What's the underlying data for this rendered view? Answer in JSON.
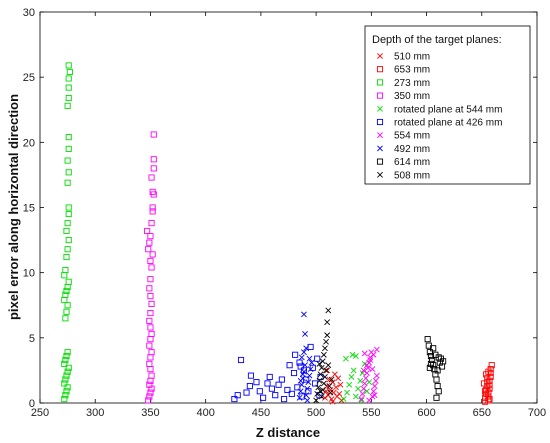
{
  "chart_data": {
    "type": "scatter",
    "title": "",
    "xlabel": "Z distance",
    "ylabel": "pixel error along horizontal direction",
    "xlim": [
      250,
      700
    ],
    "ylim": [
      0,
      30
    ],
    "xticks": [
      250,
      300,
      350,
      400,
      450,
      500,
      550,
      600,
      650,
      700
    ],
    "yticks": [
      0,
      5,
      10,
      15,
      20,
      25,
      30
    ],
    "grid": false,
    "legend": {
      "title": "Depth of the target planes:",
      "placement": "top-right"
    },
    "series": [
      {
        "name": "510 mm",
        "marker": "x",
        "color": "#ff0000",
        "points": [
          [
            508,
            0.4
          ],
          [
            509,
            0.9
          ],
          [
            510,
            1.3
          ],
          [
            511,
            0.6
          ],
          [
            512,
            1.8
          ],
          [
            513,
            1.0
          ],
          [
            514,
            0.3
          ],
          [
            515,
            1.6
          ],
          [
            516,
            0.8
          ],
          [
            517,
            2.2
          ],
          [
            518,
            1.2
          ],
          [
            519,
            0.5
          ],
          [
            520,
            1.9
          ],
          [
            521,
            0.7
          ],
          [
            522,
            1.4
          ],
          [
            523,
            0.2
          ],
          [
            510,
            2.5
          ],
          [
            515,
            0.1
          ]
        ]
      },
      {
        "name": "653 mm",
        "marker": "square",
        "color": "#ff0000",
        "points": [
          [
            653,
            0.1
          ],
          [
            653,
            0.4
          ],
          [
            654,
            0.7
          ],
          [
            654,
            1.0
          ],
          [
            655,
            1.3
          ],
          [
            655,
            1.6
          ],
          [
            655,
            1.9
          ],
          [
            656,
            0.2
          ],
          [
            656,
            0.5
          ],
          [
            656,
            0.8
          ],
          [
            657,
            1.1
          ],
          [
            657,
            1.4
          ],
          [
            657,
            1.7
          ],
          [
            658,
            2.0
          ],
          [
            658,
            2.3
          ],
          [
            658,
            2.6
          ],
          [
            659,
            2.9
          ],
          [
            654,
            2.2
          ],
          [
            656,
            2.4
          ],
          [
            652,
            1.5
          ],
          [
            653,
            0.9
          ],
          [
            657,
            0.3
          ]
        ]
      },
      {
        "name": "273 mm",
        "marker": "square",
        "color": "#00dd00",
        "points": [
          [
            272,
            0.3
          ],
          [
            273,
            0.6
          ],
          [
            274,
            0.9
          ],
          [
            275,
            1.2
          ],
          [
            272,
            1.5
          ],
          [
            273,
            1.8
          ],
          [
            274,
            2.1
          ],
          [
            275,
            2.4
          ],
          [
            276,
            2.7
          ],
          [
            272,
            3.0
          ],
          [
            273,
            3.3
          ],
          [
            274,
            3.6
          ],
          [
            275,
            3.9
          ],
          [
            273,
            6.5
          ],
          [
            274,
            7.0
          ],
          [
            275,
            7.5
          ],
          [
            272,
            7.9
          ],
          [
            273,
            8.3
          ],
          [
            274,
            8.6
          ],
          [
            275,
            8.9
          ],
          [
            276,
            9.3
          ],
          [
            272,
            9.8
          ],
          [
            273,
            10.2
          ],
          [
            274,
            11.2
          ],
          [
            275,
            11.8
          ],
          [
            276,
            12.5
          ],
          [
            274,
            13.2
          ],
          [
            275,
            13.8
          ],
          [
            276,
            14.5
          ],
          [
            276,
            15.0
          ],
          [
            275,
            16.9
          ],
          [
            276,
            17.7
          ],
          [
            275,
            18.6
          ],
          [
            276,
            19.5
          ],
          [
            276,
            20.4
          ],
          [
            275,
            22.8
          ],
          [
            276,
            23.4
          ],
          [
            276,
            24.2
          ],
          [
            276,
            24.9
          ],
          [
            277,
            25.4
          ],
          [
            276,
            25.9
          ]
        ]
      },
      {
        "name": "350 mm",
        "marker": "square",
        "color": "#ff00ff",
        "points": [
          [
            348,
            0.2
          ],
          [
            349,
            0.5
          ],
          [
            350,
            0.8
          ],
          [
            351,
            1.1
          ],
          [
            349,
            1.4
          ],
          [
            350,
            1.7
          ],
          [
            351,
            2.1
          ],
          [
            350,
            2.6
          ],
          [
            349,
            3.0
          ],
          [
            350,
            3.5
          ],
          [
            351,
            3.9
          ],
          [
            349,
            4.4
          ],
          [
            350,
            4.9
          ],
          [
            351,
            5.3
          ],
          [
            350,
            5.8
          ],
          [
            349,
            6.3
          ],
          [
            350,
            6.9
          ],
          [
            351,
            7.6
          ],
          [
            350,
            8.2
          ],
          [
            349,
            8.8
          ],
          [
            350,
            9.5
          ],
          [
            351,
            10.4
          ],
          [
            350,
            10.9
          ],
          [
            352,
            11.4
          ],
          [
            348,
            11.8
          ],
          [
            349,
            12.3
          ],
          [
            350,
            12.8
          ],
          [
            347,
            13.2
          ],
          [
            351,
            13.8
          ],
          [
            352,
            14.7
          ],
          [
            352,
            15.0
          ],
          [
            353,
            16.0
          ],
          [
            352,
            16.2
          ],
          [
            351,
            17.3
          ],
          [
            353,
            18.0
          ],
          [
            353,
            18.7
          ],
          [
            353,
            20.6
          ]
        ]
      },
      {
        "name": "rotated plane at 544 mm",
        "marker": "x",
        "color": "#00dd00",
        "points": [
          [
            525,
            0.3
          ],
          [
            528,
            0.8
          ],
          [
            530,
            1.4
          ],
          [
            532,
            2.0
          ],
          [
            534,
            2.5
          ],
          [
            536,
            0.5
          ],
          [
            538,
            1.1
          ],
          [
            540,
            1.7
          ],
          [
            542,
            2.3
          ],
          [
            544,
            3.0
          ],
          [
            546,
            0.9
          ],
          [
            548,
            1.6
          ],
          [
            527,
            3.4
          ],
          [
            533,
            3.7
          ],
          [
            541,
            0.2
          ],
          [
            536,
            3.6
          ]
        ]
      },
      {
        "name": "rotated plane at 426 mm",
        "marker": "square",
        "color": "#0000ff",
        "points": [
          [
            426,
            0.3
          ],
          [
            429,
            0.6
          ],
          [
            432,
            3.3
          ],
          [
            437,
            0.8
          ],
          [
            440,
            1.3
          ],
          [
            441,
            2.1
          ],
          [
            446,
            1.6
          ],
          [
            449,
            0.9
          ],
          [
            452,
            0.4
          ],
          [
            456,
            1.5
          ],
          [
            458,
            2.0
          ],
          [
            460,
            1.1
          ],
          [
            463,
            0.6
          ],
          [
            466,
            1.4
          ],
          [
            469,
            1.8
          ],
          [
            471,
            0.3
          ],
          [
            474,
            1.0
          ],
          [
            476,
            2.9
          ],
          [
            478,
            0.7
          ],
          [
            480,
            2.3
          ],
          [
            481,
            3.7
          ],
          [
            483,
            1.2
          ],
          [
            485,
            3.1
          ],
          [
            487,
            0.5
          ],
          [
            489,
            2.5
          ],
          [
            491,
            1.8
          ],
          [
            493,
            0.9
          ],
          [
            495,
            4.3
          ],
          [
            497,
            2.7
          ],
          [
            499,
            1.5
          ],
          [
            501,
            3.4
          ],
          [
            503,
            0.6
          ],
          [
            504,
            2.0
          ],
          [
            486,
            2.8
          ]
        ]
      },
      {
        "name": "554 mm",
        "marker": "x",
        "color": "#ff00ff",
        "points": [
          [
            541,
            0.3
          ],
          [
            542,
            0.7
          ],
          [
            543,
            1.1
          ],
          [
            544,
            1.5
          ],
          [
            545,
            1.9
          ],
          [
            546,
            2.3
          ],
          [
            547,
            2.7
          ],
          [
            548,
            3.1
          ],
          [
            549,
            3.5
          ],
          [
            550,
            3.9
          ],
          [
            551,
            0.5
          ],
          [
            552,
            0.9
          ],
          [
            553,
            1.3
          ],
          [
            554,
            1.7
          ],
          [
            555,
            2.1
          ],
          [
            543,
            2.5
          ],
          [
            546,
            2.9
          ],
          [
            549,
            3.3
          ],
          [
            552,
            3.7
          ],
          [
            555,
            4.1
          ],
          [
            548,
            0.2
          ],
          [
            551,
            2.6
          ],
          [
            544,
            3.8
          ],
          [
            553,
            0.6
          ]
        ]
      },
      {
        "name": "492 mm",
        "marker": "x",
        "color": "#0000ff",
        "points": [
          [
            485,
            0.4
          ],
          [
            486,
            0.9
          ],
          [
            487,
            1.4
          ],
          [
            488,
            1.9
          ],
          [
            489,
            2.4
          ],
          [
            490,
            2.9
          ],
          [
            491,
            0.6
          ],
          [
            492,
            1.1
          ],
          [
            493,
            1.6
          ],
          [
            494,
            2.1
          ],
          [
            495,
            2.6
          ],
          [
            496,
            3.1
          ],
          [
            487,
            3.5
          ],
          [
            489,
            3.9
          ],
          [
            491,
            4.2
          ],
          [
            490,
            5.3
          ],
          [
            489,
            6.8
          ],
          [
            488,
            2.2
          ],
          [
            492,
            0.2
          ],
          [
            494,
            3.4
          ],
          [
            486,
            1.7
          ]
        ]
      },
      {
        "name": "614 mm",
        "marker": "square",
        "color": "#000000",
        "points": [
          [
            601,
            4.9
          ],
          [
            602,
            4.4
          ],
          [
            603,
            3.9
          ],
          [
            604,
            3.6
          ],
          [
            605,
            3.3
          ],
          [
            606,
            2.9
          ],
          [
            607,
            2.6
          ],
          [
            608,
            2.2
          ],
          [
            609,
            1.8
          ],
          [
            610,
            1.3
          ],
          [
            611,
            0.9
          ],
          [
            612,
            3.1
          ],
          [
            613,
            3.4
          ],
          [
            614,
            2.8
          ],
          [
            615,
            3.2
          ],
          [
            606,
            4.2
          ],
          [
            608,
            3.7
          ],
          [
            610,
            2.5
          ],
          [
            604,
            3.0
          ],
          [
            609,
            0.4
          ],
          [
            603,
            2.7
          ],
          [
            611,
            3.5
          ]
        ]
      },
      {
        "name": "508 mm",
        "marker": "x",
        "color": "#000000",
        "points": [
          [
            500,
            0.2
          ],
          [
            501,
            0.7
          ],
          [
            502,
            1.2
          ],
          [
            503,
            1.7
          ],
          [
            504,
            2.2
          ],
          [
            505,
            2.7
          ],
          [
            506,
            3.2
          ],
          [
            507,
            3.7
          ],
          [
            508,
            4.2
          ],
          [
            509,
            4.7
          ],
          [
            510,
            5.2
          ],
          [
            510,
            6.2
          ],
          [
            511,
            7.1
          ],
          [
            505,
            0.5
          ],
          [
            506,
            1.0
          ],
          [
            507,
            1.5
          ],
          [
            508,
            2.0
          ],
          [
            509,
            2.5
          ],
          [
            512,
            1.3
          ],
          [
            513,
            0.8
          ],
          [
            514,
            1.8
          ],
          [
            503,
            3.0
          ],
          [
            511,
            2.9
          ],
          [
            504,
            0.9
          ]
        ]
      }
    ]
  }
}
